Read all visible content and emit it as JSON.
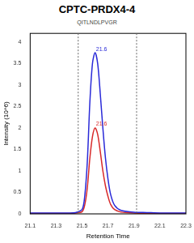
{
  "chart_data": {
    "type": "line",
    "title": "CPTC-PRDX4-4",
    "subtitle": "QITLNDLPVGR",
    "x_label": "Retention Time",
    "y_label": "Intensity (10^6)",
    "x": [
      21.1,
      21.2,
      21.3,
      21.4,
      21.45,
      21.5,
      21.52,
      21.54,
      21.56,
      21.58,
      21.6,
      21.62,
      21.64,
      21.66,
      21.68,
      21.7,
      21.72,
      21.75,
      21.8,
      21.9,
      22.0,
      22.1,
      22.2,
      22.3
    ],
    "series": [
      {
        "color": "#2a2ad8",
        "values": [
          0.02,
          0.02,
          0.02,
          0.02,
          0.03,
          0.1,
          0.4,
          1.2,
          2.6,
          3.5,
          3.75,
          3.5,
          2.8,
          2.0,
          1.3,
          0.8,
          0.45,
          0.2,
          0.08,
          0.04,
          0.03,
          0.02,
          0.02,
          0.02
        ]
      },
      {
        "color": "#d82a2a",
        "values": [
          0.01,
          0.01,
          0.01,
          0.01,
          0.02,
          0.05,
          0.2,
          0.6,
          1.3,
          1.8,
          2.0,
          1.85,
          1.45,
          1.0,
          0.65,
          0.4,
          0.22,
          0.1,
          0.04,
          0.02,
          0.01,
          0.01,
          0.01,
          0.01
        ]
      }
    ],
    "annotations": [
      {
        "text": "21.6",
        "x": 21.6,
        "y": 3.75
      },
      {
        "text": "21.6",
        "x": 21.6,
        "y": 2.0
      }
    ],
    "boundaries": [
      21.47,
      21.92
    ],
    "xlim": [
      21.1,
      22.3
    ],
    "xticks": [
      21.1,
      21.3,
      21.5,
      21.7,
      21.9,
      22.1,
      22.3
    ],
    "ylim": [
      0,
      4.2
    ],
    "yticks": [
      0,
      0.5,
      1,
      1.5,
      2,
      2.5,
      3,
      3.5,
      4
    ],
    "grid": false
  }
}
